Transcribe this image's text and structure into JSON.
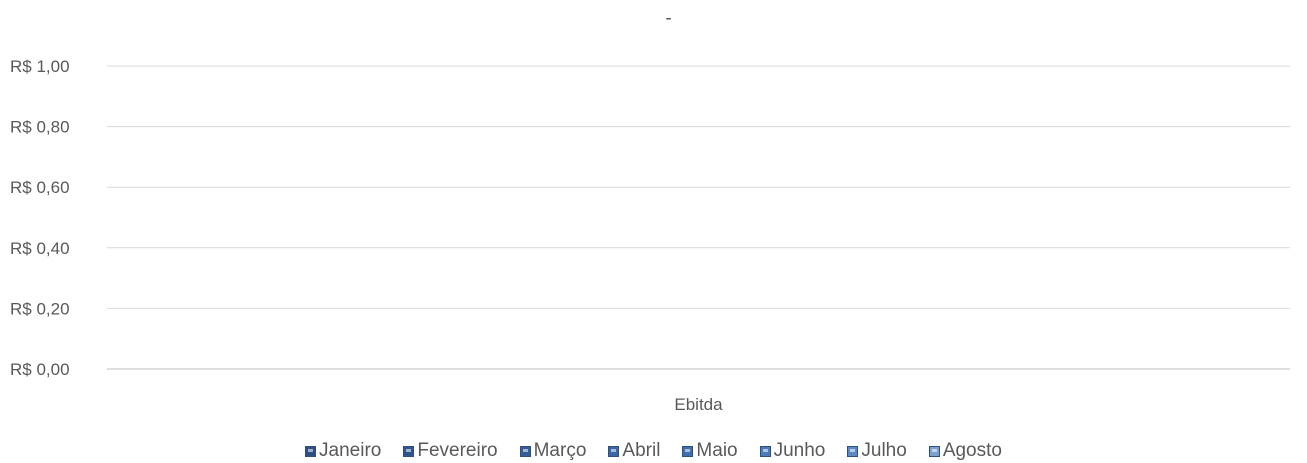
{
  "chart_data": {
    "type": "bar",
    "title": "-",
    "categories": [
      "Ebitda"
    ],
    "series": [
      {
        "name": "Janeiro",
        "values": [
          0
        ],
        "color": "#2e4f86"
      },
      {
        "name": "Fevereiro",
        "values": [
          0
        ],
        "color": "#2f5591"
      },
      {
        "name": "Março",
        "values": [
          0
        ],
        "color": "#335d9c"
      },
      {
        "name": "Abril",
        "values": [
          0
        ],
        "color": "#3866a8"
      },
      {
        "name": "Maio",
        "values": [
          0
        ],
        "color": "#3d6fb3"
      },
      {
        "name": "Junho",
        "values": [
          0
        ],
        "color": "#4a7cbd"
      },
      {
        "name": "Julho",
        "values": [
          0
        ],
        "color": "#5a8ac6"
      },
      {
        "name": "Agosto",
        "values": [
          0
        ],
        "color": "#7aa1d2"
      }
    ],
    "y_ticks": [
      "R$ 0,00",
      "R$ 0,20",
      "R$ 0,40",
      "R$ 0,60",
      "R$ 0,80",
      "R$ 1,00"
    ],
    "ylim": [
      0,
      1
    ],
    "grid": true,
    "legend_position": "bottom"
  }
}
